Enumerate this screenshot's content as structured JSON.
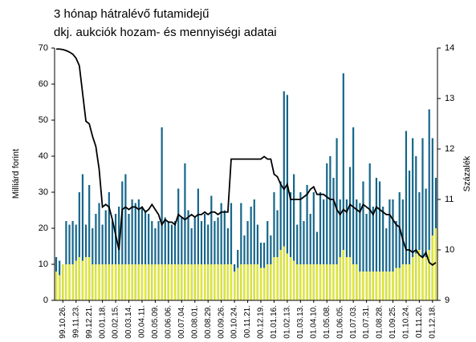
{
  "chart_data": {
    "type": "bar",
    "title": "3 hónap hátralévő futamidejű",
    "subtitle": "dkj. aukciók hozam- és mennyiségi adatai",
    "ylabel": "Milliárd forint",
    "y2label": "Százalék",
    "ylim": [
      0,
      70
    ],
    "yticks": [
      0,
      10,
      20,
      30,
      40,
      50,
      60,
      70
    ],
    "y2lim": [
      9,
      14
    ],
    "y2ticks": [
      9,
      10,
      11,
      12,
      13,
      14
    ],
    "grid": false,
    "categories": [
      null,
      null,
      "99.10.26.",
      null,
      null,
      null,
      "99.11.23.",
      null,
      null,
      null,
      "99.12.21.",
      null,
      null,
      null,
      "00.01.18.",
      null,
      null,
      null,
      "00.02.15.",
      null,
      null,
      null,
      "00.03.14.",
      null,
      null,
      null,
      "00.04.11.",
      null,
      null,
      null,
      "00.05.09.",
      null,
      null,
      null,
      "00.06.06.",
      null,
      null,
      null,
      "00.07.04.",
      null,
      null,
      null,
      "00.08.01.",
      null,
      null,
      null,
      "00.08.29.",
      null,
      null,
      null,
      "00.09.26.",
      null,
      null,
      null,
      "00.10.24.",
      null,
      null,
      null,
      "00.11.21.",
      null,
      null,
      null,
      "00.12.19.",
      null,
      null,
      null,
      "01.01.16.",
      null,
      null,
      null,
      "01.02.13.",
      null,
      null,
      null,
      "01.03.13.",
      null,
      null,
      null,
      "01.04.10.",
      null,
      null,
      null,
      "01.05.08.",
      null,
      null,
      null,
      "01.06.05.",
      null,
      null,
      null,
      "01.07.03.",
      null,
      null,
      null,
      "01.07.31.",
      null,
      null,
      null,
      "01.08.28.",
      null,
      null,
      null,
      "01.09.25.",
      null,
      null,
      null,
      "01.10.24.",
      null,
      null,
      null,
      "01.11.20.",
      null,
      null,
      null,
      "01.12.18.",
      null
    ],
    "series": [
      {
        "type": "bar",
        "color": "#15668a",
        "values": [
          12,
          11,
          10,
          22,
          21,
          22,
          21,
          30,
          35,
          21,
          32,
          20,
          24,
          27,
          21,
          25,
          30,
          22,
          24,
          26,
          33,
          35,
          24,
          28,
          27,
          28,
          26,
          25,
          24,
          22,
          20,
          22,
          48,
          23,
          22,
          21,
          22,
          31,
          23,
          38,
          25,
          20,
          23,
          31,
          22,
          24,
          21,
          29,
          22,
          23,
          27,
          25,
          20,
          27,
          10,
          14,
          27,
          18,
          22,
          26,
          28,
          21,
          16,
          16,
          22,
          18,
          30,
          25,
          33,
          58,
          57,
          30,
          35,
          21,
          30,
          22,
          32,
          24,
          30,
          19,
          30,
          28,
          38,
          40,
          34,
          45,
          28,
          63,
          28,
          37,
          48,
          28,
          27,
          33,
          24,
          38,
          26,
          34,
          33,
          26,
          20,
          28,
          28,
          22,
          30,
          28,
          47,
          36,
          45,
          40,
          30,
          45,
          31,
          53,
          45,
          34
        ]
      },
      {
        "type": "bar",
        "color": "#e4e82c",
        "values": [
          8,
          7,
          10,
          10,
          10,
          10,
          11,
          12,
          11,
          12,
          12,
          10,
          10,
          10,
          10,
          10,
          10,
          10,
          10,
          10,
          10,
          10,
          10,
          10,
          10,
          10,
          10,
          10,
          10,
          10,
          10,
          10,
          10,
          10,
          10,
          10,
          10,
          10,
          10,
          10,
          10,
          10,
          10,
          10,
          10,
          10,
          10,
          10,
          10,
          10,
          10,
          10,
          10,
          10,
          8,
          9,
          10,
          10,
          10,
          10,
          10,
          10,
          9,
          9,
          10,
          10,
          12,
          12,
          14,
          15,
          13,
          12,
          11,
          10,
          10,
          10,
          10,
          10,
          10,
          10,
          10,
          10,
          10,
          10,
          10,
          10,
          12,
          14,
          12,
          12,
          10,
          10,
          8,
          8,
          8,
          8,
          8,
          8,
          8,
          8,
          8,
          8,
          8,
          9,
          9,
          10,
          10,
          10,
          12,
          13,
          14,
          12,
          12,
          14,
          18,
          20
        ]
      },
      {
        "type": "line",
        "axis": "y2",
        "color": "#000000",
        "values": [
          13.98,
          13.98,
          13.97,
          13.95,
          13.92,
          13.88,
          13.8,
          13.65,
          13.1,
          12.55,
          12.5,
          12.25,
          12.05,
          11.6,
          10.85,
          10.9,
          10.85,
          10.6,
          10.3,
          10.0,
          10.8,
          10.85,
          10.8,
          10.85,
          10.85,
          10.8,
          10.85,
          10.75,
          10.8,
          10.9,
          10.8,
          10.7,
          10.5,
          10.6,
          10.55,
          10.55,
          10.5,
          10.7,
          10.65,
          10.6,
          10.65,
          10.7,
          10.65,
          10.7,
          10.7,
          10.75,
          10.7,
          10.75,
          10.75,
          10.7,
          10.75,
          10.75,
          10.75,
          11.8,
          11.8,
          11.8,
          11.8,
          11.8,
          11.8,
          11.8,
          11.8,
          11.8,
          11.8,
          11.85,
          11.8,
          11.8,
          11.5,
          11.45,
          11.3,
          11.2,
          11.3,
          11.0,
          11.0,
          11.0,
          11.0,
          11.05,
          11.1,
          11.2,
          11.25,
          11.1,
          11.1,
          11.1,
          11.05,
          11.0,
          11.0,
          10.8,
          10.7,
          10.8,
          10.75,
          10.9,
          10.85,
          10.8,
          10.75,
          10.9,
          10.85,
          10.8,
          10.7,
          10.85,
          10.8,
          10.75,
          10.7,
          10.7,
          10.6,
          10.5,
          10.45,
          10.2,
          10.0,
          10.0,
          9.95,
          10.0,
          9.9,
          9.85,
          9.95,
          9.75,
          9.7,
          9.75
        ]
      }
    ]
  }
}
